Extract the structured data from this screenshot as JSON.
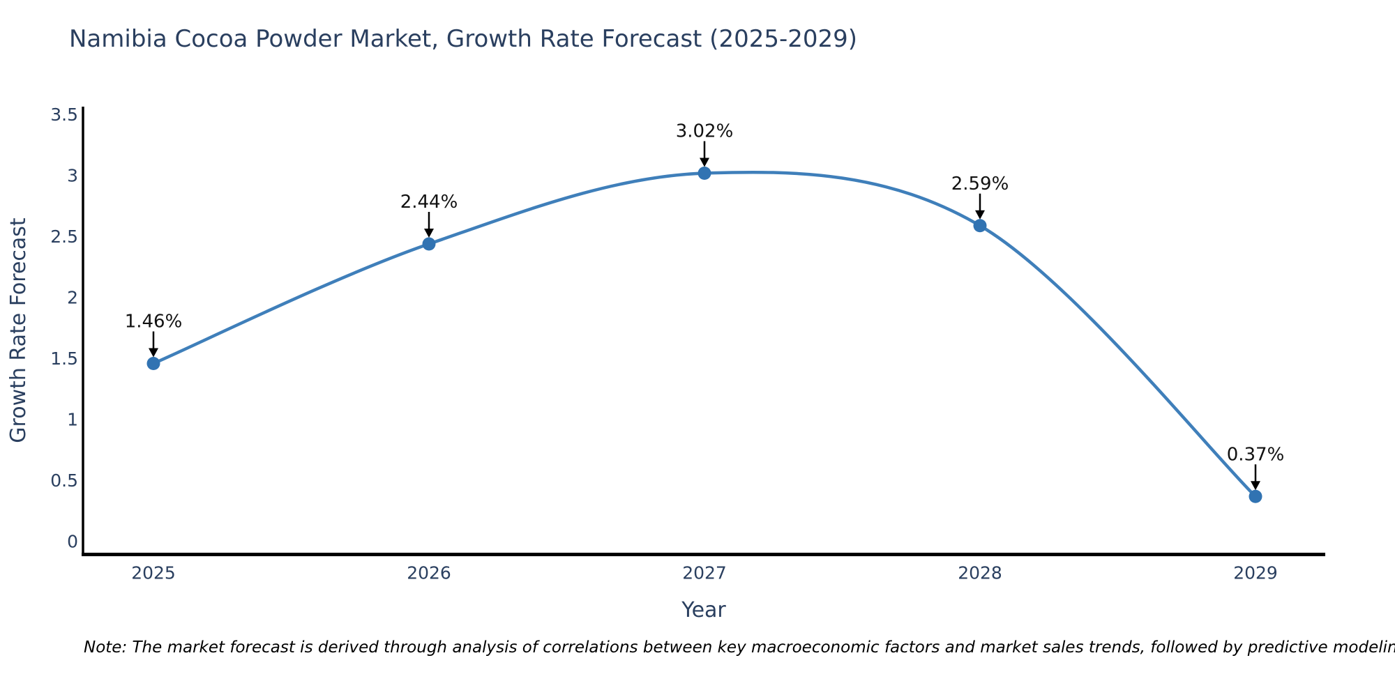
{
  "title": "Namibia Cocoa Powder Market, Growth Rate Forecast (2025-2029)",
  "chart_data": {
    "type": "line",
    "title": "Namibia Cocoa Powder Market, Growth Rate Forecast (2025-2029)",
    "categories": [
      "2025",
      "2026",
      "2027",
      "2028",
      "2029"
    ],
    "values": [
      1.46,
      2.44,
      3.02,
      2.59,
      0.37
    ],
    "point_labels": [
      "1.46%",
      "2.44%",
      "3.02%",
      "2.59%",
      "0.37%"
    ],
    "xlabel": "Year",
    "ylabel": "Growth Rate Forecast",
    "ylim": [
      0,
      3.5
    ],
    "yticks": [
      0,
      0.5,
      1,
      1.5,
      2,
      2.5,
      3,
      3.5
    ],
    "ytick_labels": [
      "0",
      "0.5",
      "1",
      "1.5",
      "2",
      "2.5",
      "3",
      "3.5"
    ],
    "grid": false,
    "legend": "none",
    "line_shape": "spline",
    "line_color": "#3f7fba",
    "marker_color": "#3173b2",
    "axis_line_color": "#000000",
    "annotation_arrow_color": "#000000",
    "tick_text_color": "#2a3f5f",
    "annotation_text_color": "#111111"
  },
  "note": {
    "text": "Note: The market forecast is derived through analysis of correlations between key macroeconomic factors and market sales trends, followed by predictive modeling to project future sales"
  }
}
